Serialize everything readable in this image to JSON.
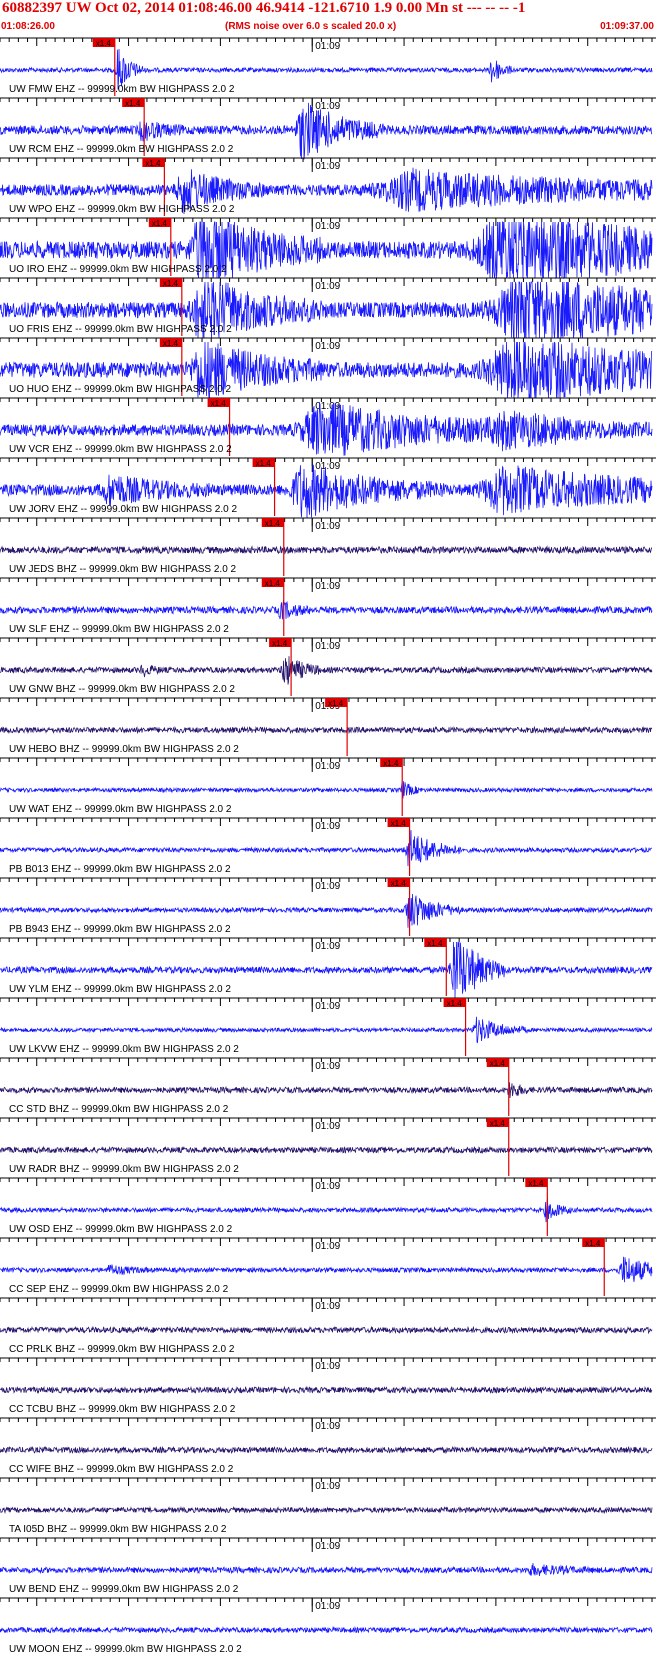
{
  "header": {
    "title": "60882397 UW Oct 02, 2014 01:08:46.00   46.9414 -121.6710  1.9 0.00 Mn st --- -- --   -1",
    "start_time": "01:08:26.00",
    "note": "(RMS noise over 6.0 s scaled 20.0 x)",
    "end_time": "01:09:37.00"
  },
  "chart_data": {
    "type": "line",
    "x_range_seconds": [
      0,
      71
    ],
    "minute_tick_label": "01:09",
    "minute_tick_second": 34,
    "pick_label": "x1.4",
    "colors": {
      "trace_blue": "#1a1aff",
      "trace_dark": "#2a1870",
      "pick": "#e00000",
      "axis": "#000000"
    },
    "traces": [
      {
        "label": "UW FMW EHZ -- 99999.0km BW  HIGHPASS  2.0  2",
        "color": "blue",
        "pick": 12.5,
        "bursts": [
          [
            12.8,
            1.3,
            0.8
          ],
          [
            53.5,
            1.0,
            0.55
          ]
        ],
        "noise": 0.08,
        "clip": false
      },
      {
        "label": "UW RCM EHZ -- 99999.0km BW  HIGHPASS  2.0  2",
        "color": "blue",
        "pick": 15.7,
        "bursts": [
          [
            33.0,
            4.0,
            1.0
          ],
          [
            15.5,
            2.0,
            0.3
          ]
        ],
        "noise": 0.16,
        "clip": false
      },
      {
        "label": "UW WPO EHZ -- 99999.0km BW  HIGHPASS  2.0  2",
        "color": "blue",
        "pick": 17.9,
        "bursts": [
          [
            20.0,
            4.0,
            0.7
          ],
          [
            45.0,
            20.0,
            0.6
          ]
        ],
        "noise": 0.2,
        "clip": false
      },
      {
        "label": "UO IRO EHZ -- 99999.0km BW  HIGHPASS  2.0  2",
        "color": "blue",
        "pick": 18.6,
        "bursts": [
          [
            22.0,
            6.0,
            1.0
          ],
          [
            55.0,
            15.0,
            1.0
          ]
        ],
        "noise": 0.22,
        "clip": true
      },
      {
        "label": "UO FRIS EHZ -- 99999.0km BW  HIGHPASS  2.0  2",
        "color": "blue",
        "pick": 19.8,
        "bursts": [
          [
            22.0,
            6.0,
            0.8
          ],
          [
            57.0,
            17.0,
            0.85
          ]
        ],
        "noise": 0.2,
        "clip": true
      },
      {
        "label": "UO HUO EHZ -- 99999.0km BW  HIGHPASS  2.0  2",
        "color": "blue",
        "pick": 19.8,
        "bursts": [
          [
            22.0,
            6.0,
            0.7
          ],
          [
            56.0,
            15.0,
            0.8
          ]
        ],
        "noise": 0.2,
        "clip": true
      },
      {
        "label": "UW VCR EHZ -- 99999.0km BW  HIGHPASS  2.0  2",
        "color": "blue",
        "pick": 25.0,
        "bursts": [
          [
            35.0,
            12.0,
            0.9
          ],
          [
            55.0,
            10.0,
            0.4
          ]
        ],
        "noise": 0.2,
        "clip": false
      },
      {
        "label": "UW JORV EHZ -- 99999.0km BW  HIGHPASS  2.0  2",
        "color": "blue",
        "pick": 29.9,
        "bursts": [
          [
            12.0,
            5.0,
            0.45
          ],
          [
            33.0,
            7.0,
            0.9
          ],
          [
            55.0,
            14.0,
            0.75
          ]
        ],
        "noise": 0.2,
        "clip": false
      },
      {
        "label": "UW JEDS BHZ -- 99999.0km BW  HIGHPASS  2.0  2",
        "color": "dark",
        "pick": 30.9,
        "bursts": [],
        "noise": 0.12,
        "clip": false
      },
      {
        "label": "UW SLF EHZ -- 99999.0km BW  HIGHPASS  2.0  2",
        "color": "blue",
        "pick": 30.9,
        "bursts": [
          [
            30.6,
            1.5,
            0.3
          ]
        ],
        "noise": 0.12,
        "clip": false
      },
      {
        "label": "UW GNW BHZ -- 99999.0km BW  HIGHPASS  2.0  2",
        "color": "dark",
        "pick": 31.7,
        "bursts": [
          [
            31.0,
            1.8,
            0.55
          ],
          [
            15.5,
            1.0,
            0.2
          ]
        ],
        "noise": 0.1,
        "clip": false
      },
      {
        "label": "UW HEBO BHZ -- 99999.0km BW  HIGHPASS  2.0  2",
        "color": "dark",
        "pick": 37.8,
        "bursts": [],
        "noise": 0.1,
        "clip": false
      },
      {
        "label": "UW WAT EHZ -- 99999.0km BW  HIGHPASS  2.0  2",
        "color": "blue",
        "pick": 43.8,
        "bursts": [
          [
            43.8,
            1.0,
            0.3
          ]
        ],
        "noise": 0.07,
        "clip": false
      },
      {
        "label": "PB B013 EHZ -- 99999.0km BW  HIGHPASS  2.0  2",
        "color": "blue",
        "pick": 44.6,
        "bursts": [
          [
            44.6,
            2.5,
            0.7
          ]
        ],
        "noise": 0.08,
        "clip": false
      },
      {
        "label": "PB B943 EHZ -- 99999.0km BW  HIGHPASS  2.0  2",
        "color": "blue",
        "pick": 44.6,
        "bursts": [
          [
            44.6,
            2.5,
            0.7
          ]
        ],
        "noise": 0.08,
        "clip": false
      },
      {
        "label": "UW YLM EHZ -- 99999.0km BW  HIGHPASS  2.0  2",
        "color": "blue",
        "pick": 48.6,
        "bursts": [
          [
            49.5,
            2.5,
            1.0
          ]
        ],
        "noise": 0.08,
        "clip": true
      },
      {
        "label": "UW LKVW EHZ -- 99999.0km BW  HIGHPASS  2.0  2",
        "color": "blue",
        "pick": 50.7,
        "bursts": [
          [
            52.0,
            2.5,
            0.45
          ]
        ],
        "noise": 0.07,
        "clip": false
      },
      {
        "label": "CC STD BHZ -- 99999.0km BW  HIGHPASS  2.0  2",
        "color": "dark",
        "pick": 55.4,
        "bursts": [
          [
            55.5,
            1.0,
            0.3
          ]
        ],
        "noise": 0.1,
        "clip": false
      },
      {
        "label": "UW RADR BHZ -- 99999.0km BW  HIGHPASS  2.0  2",
        "color": "dark",
        "pick": 55.4,
        "bursts": [],
        "noise": 0.1,
        "clip": false
      },
      {
        "label": "UW OSD EHZ -- 99999.0km BW  HIGHPASS  2.0  2",
        "color": "blue",
        "pick": 59.6,
        "bursts": [
          [
            59.5,
            1.2,
            0.4
          ]
        ],
        "noise": 0.08,
        "clip": false
      },
      {
        "label": "CC SEP EHZ -- 99999.0km BW  HIGHPASS  2.0  2",
        "color": "blue",
        "pick": 65.8,
        "bursts": [
          [
            68.0,
            3.0,
            0.5
          ],
          [
            12.0,
            2.0,
            0.15
          ]
        ],
        "noise": 0.08,
        "clip": false
      },
      {
        "label": "CC PRLK BHZ -- 99999.0km BW  HIGHPASS  2.0  2",
        "color": "dark",
        "pick": null,
        "bursts": [],
        "noise": 0.1,
        "clip": false
      },
      {
        "label": "CC TCBU BHZ -- 99999.0km BW  HIGHPASS  2.0  2",
        "color": "dark",
        "pick": null,
        "bursts": [],
        "noise": 0.1,
        "clip": false
      },
      {
        "label": "CC WIFE BHZ -- 99999.0km BW  HIGHPASS  2.0  2",
        "color": "dark",
        "pick": null,
        "bursts": [],
        "noise": 0.1,
        "clip": false
      },
      {
        "label": "TA I05D BHZ -- 99999.0km BW  HIGHPASS  2.0  2",
        "color": "dark",
        "pick": null,
        "bursts": [],
        "noise": 0.09,
        "clip": false
      },
      {
        "label": "UW BEND EHZ -- 99999.0km BW  HIGHPASS  2.0  2",
        "color": "blue",
        "pick": null,
        "bursts": [
          [
            58.0,
            3.0,
            0.15
          ]
        ],
        "noise": 0.1,
        "clip": false
      },
      {
        "label": "UW MOON EHZ -- 99999.0km BW  HIGHPASS  2.0  2",
        "color": "blue",
        "pick": null,
        "bursts": [],
        "noise": 0.09,
        "clip": false
      }
    ]
  }
}
